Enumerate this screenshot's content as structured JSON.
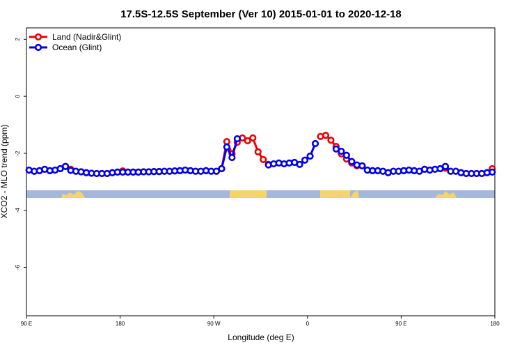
{
  "chart_data": {
    "type": "line",
    "title": "17.5S-12.5S September (Ver 10)   2015-01-01 to 2020-12-18",
    "x_label": "Longitude (deg E)",
    "y_label": "XCO2 - MLO trend (ppm)",
    "xlim": [
      90,
      540
    ],
    "xticks": [
      {
        "value": 90,
        "label": "90 E"
      },
      180,
      {
        "value": 270,
        "label": "90 W"
      },
      {
        "value": 360,
        "label": "0"
      },
      {
        "value": 450,
        "label": "90 E"
      },
      {
        "value": 540,
        "label": "180"
      }
    ],
    "ylim": [
      -7.7,
      2.4
    ],
    "yticks": [
      2,
      0,
      -2,
      -4,
      -6
    ],
    "legend": "top-left",
    "x": [
      92.5,
      97.5,
      102.5,
      107.5,
      112.5,
      117.5,
      122.5,
      127.5,
      132.5,
      137.5,
      142.5,
      147.5,
      152.5,
      157.5,
      162.5,
      167.5,
      172.5,
      177.5,
      182.5,
      187.5,
      192.5,
      197.5,
      202.5,
      207.5,
      212.5,
      217.5,
      222.5,
      227.5,
      232.5,
      237.5,
      242.5,
      247.5,
      252.5,
      257.5,
      262.5,
      267.5,
      272.5,
      277.5,
      282.5,
      287.5,
      292.5,
      297.5,
      302.5,
      307.5,
      312.5,
      317.5,
      322.5,
      327.5,
      332.5,
      337.5,
      342.5,
      347.5,
      352.5,
      357.5,
      362.5,
      367.5,
      372.5,
      377.5,
      382.5,
      387.5,
      392.5,
      397.5,
      402.5,
      407.5,
      412.5,
      417.5,
      422.5,
      427.5,
      432.5,
      437.5,
      442.5,
      447.5,
      452.5,
      457.5,
      462.5,
      467.5,
      472.5,
      477.5,
      482.5,
      487.5,
      492.5,
      497.5,
      502.5,
      507.5,
      512.5,
      517.5,
      522.5,
      527.5,
      532.5,
      537.5
    ],
    "series": [
      {
        "name": "Land (Nadir&Glint)",
        "color": "#ee0000",
        "values": [
          -2.59,
          -2.63,
          -2.61,
          -2.56,
          -2.61,
          -2.59,
          -2.54,
          -2.46,
          -2.56,
          -2.63,
          -2.65,
          -2.68,
          -2.7,
          -2.71,
          -2.71,
          -2.71,
          -2.68,
          -2.66,
          -2.62,
          -2.66,
          -2.66,
          -2.66,
          -2.65,
          -2.65,
          -2.64,
          -2.64,
          -2.63,
          -2.63,
          -2.62,
          -2.61,
          -2.59,
          -2.61,
          -2.63,
          -2.63,
          -2.61,
          -2.63,
          -2.63,
          -2.54,
          -1.59,
          -2.02,
          -1.61,
          -1.46,
          -1.56,
          -1.46,
          -1.95,
          -2.22,
          -2.39,
          null,
          null,
          null,
          null,
          null,
          null,
          null,
          null,
          null,
          -1.41,
          -1.37,
          -1.54,
          -1.76,
          -2.02,
          -2.2,
          -2.34,
          -2.44,
          -2.44,
          -2.59,
          -2.61,
          -2.61,
          -2.63,
          -2.68,
          -2.63,
          -2.63,
          -2.61,
          -2.59,
          -2.61,
          -2.63,
          -2.56,
          -2.59,
          -2.56,
          -2.54,
          -2.52,
          -2.63,
          -2.63,
          -2.68,
          -2.71,
          -2.71,
          -2.71,
          -2.71,
          -2.68,
          -2.54
        ]
      },
      {
        "name": "Ocean (Glint)",
        "color": "#0000ee",
        "values": [
          -2.59,
          -2.63,
          -2.61,
          -2.56,
          -2.61,
          -2.59,
          -2.54,
          -2.46,
          -2.6,
          -2.63,
          -2.65,
          -2.68,
          -2.7,
          -2.71,
          -2.71,
          -2.71,
          -2.68,
          -2.66,
          -2.66,
          -2.66,
          -2.66,
          -2.66,
          -2.65,
          -2.65,
          -2.64,
          -2.64,
          -2.63,
          -2.63,
          -2.62,
          -2.61,
          -2.59,
          -2.61,
          -2.63,
          -2.63,
          -2.61,
          -2.63,
          -2.63,
          -2.54,
          -1.78,
          -2.15,
          -1.49,
          null,
          null,
          null,
          null,
          null,
          -2.41,
          -2.37,
          -2.34,
          -2.37,
          -2.34,
          -2.32,
          -2.39,
          -2.24,
          -2.1,
          -1.66,
          null,
          null,
          null,
          -1.85,
          -1.93,
          -2.07,
          -2.29,
          -2.41,
          -2.44,
          -2.59,
          -2.61,
          -2.61,
          -2.63,
          -2.68,
          -2.63,
          -2.63,
          -2.61,
          -2.59,
          -2.61,
          -2.63,
          -2.56,
          -2.59,
          -2.56,
          -2.54,
          -2.46,
          -2.63,
          -2.63,
          -2.68,
          -2.71,
          -2.71,
          -2.71,
          -2.71,
          -2.68,
          -2.66
        ]
      }
    ]
  }
}
